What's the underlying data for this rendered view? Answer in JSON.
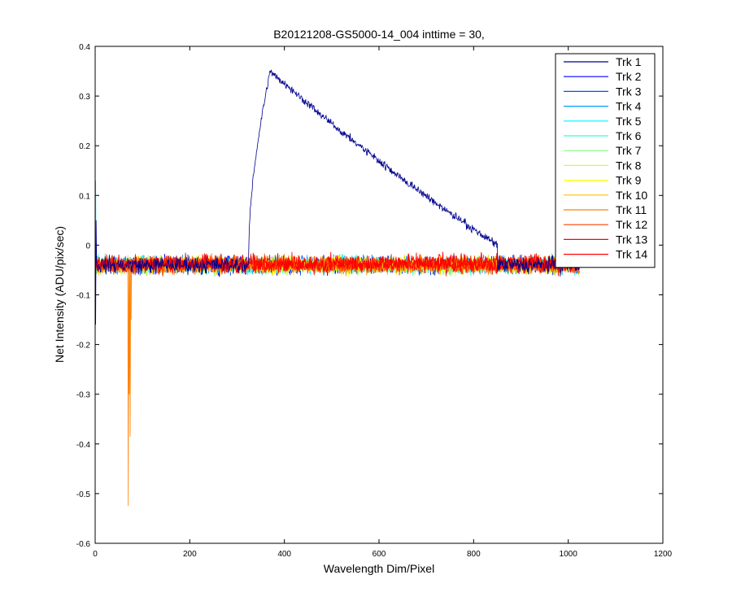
{
  "chart_data": {
    "type": "line",
    "title": "B20121208-GS5000-14_004 inttime = 30,",
    "xlabel": "Wavelength Dim/Pixel",
    "ylabel": "Net Intensity (ADU/pix/sec)",
    "xlim": [
      0,
      1200
    ],
    "ylim": [
      -0.6,
      0.4
    ],
    "xticks": [
      0,
      200,
      400,
      600,
      800,
      1000,
      1200
    ],
    "xtick_labels": [
      "0",
      "200",
      "400",
      "600",
      "800",
      "1000",
      "1200"
    ],
    "yticks": [
      -0.6,
      -0.5,
      -0.4,
      -0.3,
      -0.2,
      -0.1,
      0,
      0.1,
      0.2,
      0.3,
      0.4
    ],
    "ytick_labels": [
      "-0.6",
      "-0.5",
      "-0.4",
      "-0.3",
      "-0.2",
      "-0.1",
      "0",
      "0.1",
      "0.2",
      "0.3",
      "0.4"
    ],
    "grid": false,
    "legend_position": "top-right",
    "x_range_of_data": [
      1,
      1024
    ],
    "series": [
      {
        "name": "Trk 1",
        "color": "#00008f",
        "baseline": -0.04,
        "noise": 0.025,
        "peak": {
          "start": 325,
          "rise_end": 370,
          "max": 0.35,
          "fall_end": 850
        },
        "spikes": [
          {
            "x": 1,
            "y": -0.16
          },
          {
            "x": 2,
            "y": 0.05
          }
        ]
      },
      {
        "name": "Trk 2",
        "color": "#0000ff",
        "baseline": -0.04,
        "noise": 0.025
      },
      {
        "name": "Trk 3",
        "color": "#0050ff",
        "baseline": -0.04,
        "noise": 0.025
      },
      {
        "name": "Trk 4",
        "color": "#009fff",
        "baseline": -0.04,
        "noise": 0.025
      },
      {
        "name": "Trk 5",
        "color": "#00efff",
        "baseline": -0.04,
        "noise": 0.025,
        "spikes": [
          {
            "x": 1,
            "y": 0.13
          }
        ]
      },
      {
        "name": "Trk 6",
        "color": "#30ffcf",
        "baseline": -0.04,
        "noise": 0.025
      },
      {
        "name": "Trk 7",
        "color": "#80ff80",
        "baseline": -0.04,
        "noise": 0.025
      },
      {
        "name": "Trk 8",
        "color": "#cfff30",
        "baseline": -0.04,
        "noise": 0.025
      },
      {
        "name": "Trk 9",
        "color": "#ffff00",
        "baseline": -0.04,
        "noise": 0.025
      },
      {
        "name": "Trk 10",
        "color": "#ffbf00",
        "baseline": -0.04,
        "noise": 0.025
      },
      {
        "name": "Trk 11",
        "color": "#ff8000",
        "baseline": -0.04,
        "noise": 0.025,
        "spikes": [
          {
            "x": 70,
            "y": -0.525
          },
          {
            "x": 72,
            "y": -0.3
          },
          {
            "x": 74,
            "y": -0.385
          },
          {
            "x": 76,
            "y": -0.15
          }
        ]
      },
      {
        "name": "Trk 12",
        "color": "#ff4000",
        "baseline": -0.04,
        "noise": 0.025
      },
      {
        "name": "Trk 13",
        "color": "#ff0000",
        "baseline": -0.04,
        "noise": 0.025
      },
      {
        "name": "Trk 14",
        "color": "#ff0000",
        "baseline": -0.035,
        "noise": 0.025
      }
    ]
  }
}
